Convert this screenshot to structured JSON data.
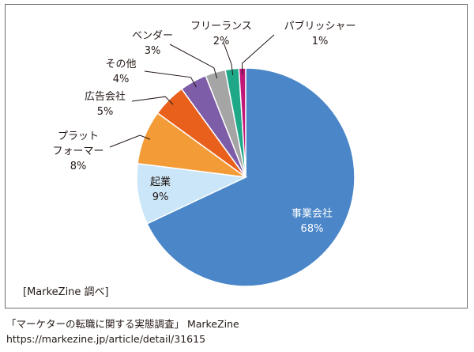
{
  "chart_data": {
    "type": "pie",
    "slices": [
      {
        "name": "事業会社",
        "value": 68,
        "label": "68%",
        "color": "#4a86c8"
      },
      {
        "name": "起業",
        "value": 9,
        "label": "9%",
        "color": "#cbe6f8"
      },
      {
        "name": "プラット\nフォーマー",
        "value": 8,
        "label": "8%",
        "color": "#f29b37"
      },
      {
        "name": "広告会社",
        "value": 5,
        "label": "5%",
        "color": "#e8601c"
      },
      {
        "name": "その他",
        "value": 4,
        "label": "4%",
        "color": "#7d5ca8"
      },
      {
        "name": "ベンダー",
        "value": 3,
        "label": "3%",
        "color": "#a5a5a5"
      },
      {
        "name": "フリーランス",
        "value": 2,
        "label": "2%",
        "color": "#1fa888"
      },
      {
        "name": "パブリッシャー",
        "value": 1,
        "label": "1%",
        "color": "#c0197a"
      }
    ]
  },
  "source_note": "[MarkeZine 調べ]",
  "credit": {
    "line1": "「マーケターの転職に関する実態調査」 MarkeZine",
    "line2": "https://markezine.jp/article/detail/31615"
  }
}
